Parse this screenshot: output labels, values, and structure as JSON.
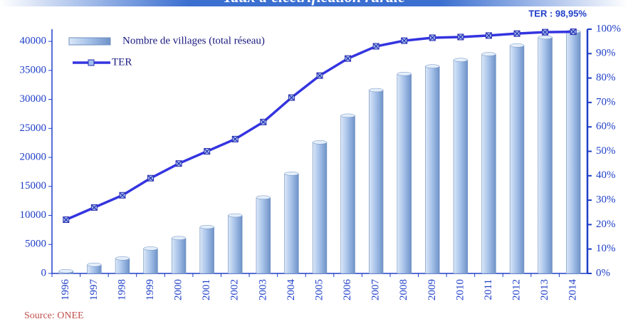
{
  "chart_data": {
    "type": "bar_line",
    "title": "Taux d'électrification rurale",
    "annotation": "TER : 98,95%",
    "source": "Source: ONEE",
    "categories": [
      "1996",
      "1997",
      "1998",
      "1999",
      "2000",
      "2001",
      "2002",
      "2003",
      "2004",
      "2005",
      "2006",
      "2007",
      "2008",
      "2009",
      "2010",
      "2011",
      "2012",
      "2013",
      "2014"
    ],
    "series": [
      {
        "name": "Nombre de villages (total réseau)",
        "color": "#8fb0de",
        "values": [
          400,
          1500,
          2600,
          4300,
          6100,
          8000,
          10000,
          13100,
          17200,
          22600,
          27200,
          31600,
          34400,
          35700,
          36800,
          37800,
          39300,
          40700,
          41700
        ]
      },
      {
        "name": "TER",
        "color": "#3434e0",
        "axis": "y2",
        "values": [
          22,
          27,
          32,
          39,
          45,
          50,
          55,
          62,
          72,
          81,
          88,
          93,
          95.3,
          96.5,
          96.8,
          97.4,
          98.2,
          98.8,
          98.95
        ]
      }
    ],
    "ylim": [
      0,
      42100
    ],
    "yticks": [
      0,
      5000,
      10000,
      15000,
      20000,
      25000,
      30000,
      35000,
      40000
    ],
    "y2lim": [
      0,
      100
    ],
    "y2ticks": [
      {
        "value": 0,
        "label": "0%"
      },
      {
        "value": 10,
        "label": "10%"
      },
      {
        "value": 20,
        "label": "20%"
      },
      {
        "value": 30,
        "label": "30%"
      },
      {
        "value": 40,
        "label": "40%"
      },
      {
        "value": 50,
        "label": "50%"
      },
      {
        "value": 60,
        "label": "60%"
      },
      {
        "value": 70,
        "label": "70%"
      },
      {
        "value": 80,
        "label": "80%"
      },
      {
        "value": 90,
        "label": "90%"
      },
      {
        "value": 100,
        "label": "100%"
      }
    ]
  }
}
